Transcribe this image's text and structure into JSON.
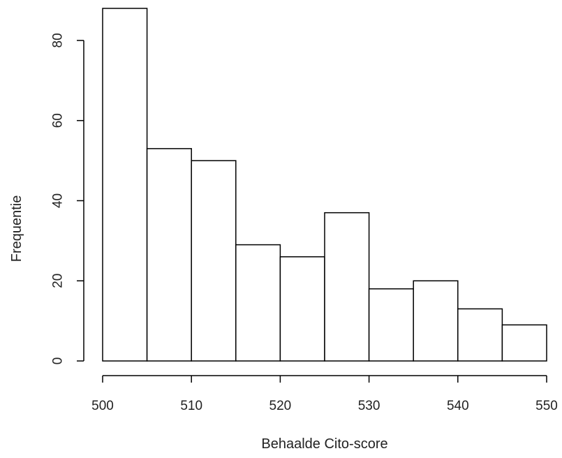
{
  "chart_data": {
    "type": "bar",
    "subtype": "histogram",
    "title": "",
    "xlabel": "Behaalde Cito-score",
    "ylabel": "Frequentie",
    "bins": [
      {
        "start": 500,
        "end": 505,
        "count": 88
      },
      {
        "start": 505,
        "end": 510,
        "count": 53
      },
      {
        "start": 510,
        "end": 515,
        "count": 50
      },
      {
        "start": 515,
        "end": 520,
        "count": 29
      },
      {
        "start": 520,
        "end": 525,
        "count": 26
      },
      {
        "start": 525,
        "end": 530,
        "count": 37
      },
      {
        "start": 530,
        "end": 535,
        "count": 18
      },
      {
        "start": 535,
        "end": 540,
        "count": 20
      },
      {
        "start": 540,
        "end": 545,
        "count": 13
      },
      {
        "start": 545,
        "end": 550,
        "count": 9
      }
    ],
    "xlim": [
      500,
      550
    ],
    "ylim": [
      0,
      88
    ],
    "x_ticks": [
      "500",
      "510",
      "520",
      "530",
      "540",
      "550"
    ],
    "y_ticks": [
      "0",
      "20",
      "40",
      "60",
      "80"
    ],
    "grid": false,
    "legend": "none",
    "bar_fill": "#ffffff",
    "bar_stroke": "#000000"
  }
}
